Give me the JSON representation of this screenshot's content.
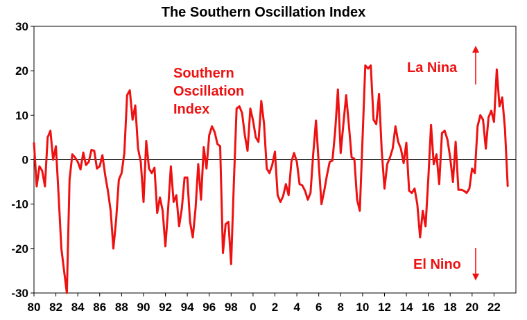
{
  "chart_data": {
    "type": "line",
    "title": "The Southern Oscillation Index",
    "xlabel": "",
    "ylabel": "",
    "xlim": [
      1980,
      2024
    ],
    "ylim": [
      -30,
      30
    ],
    "y_ticks": [
      "30",
      "20",
      "10",
      "0",
      "-10",
      "-20",
      "-30"
    ],
    "x_tick_labels": [
      "80",
      "82",
      "84",
      "86",
      "88",
      "90",
      "92",
      "94",
      "96",
      "98",
      "0",
      "2",
      "4",
      "6",
      "8",
      "10",
      "12",
      "14",
      "16",
      "18",
      "20",
      "22"
    ],
    "grid": false,
    "series_color": "#ee1111",
    "annotations": {
      "series_label": [
        "Southern",
        "Oscillation",
        "Index"
      ],
      "la_nina": "La Nina",
      "el_nino": "El Nino"
    },
    "series": [
      {
        "name": "Southern Oscillation Index",
        "x": [
          1980.0,
          1980.25,
          1980.5,
          1980.75,
          1981.0,
          1981.25,
          1981.5,
          1981.75,
          1982.0,
          1982.25,
          1982.5,
          1982.75,
          1983.0,
          1983.25,
          1983.5,
          1983.75,
          1984.0,
          1984.25,
          1984.5,
          1984.75,
          1985.0,
          1985.25,
          1985.5,
          1985.75,
          1986.0,
          1986.25,
          1986.5,
          1986.75,
          1987.0,
          1987.25,
          1987.5,
          1987.75,
          1988.0,
          1988.25,
          1988.5,
          1988.75,
          1989.0,
          1989.25,
          1989.5,
          1989.75,
          1990.0,
          1990.25,
          1990.5,
          1990.75,
          1991.0,
          1991.25,
          1991.5,
          1991.75,
          1992.0,
          1992.25,
          1992.5,
          1992.75,
          1993.0,
          1993.25,
          1993.5,
          1993.75,
          1994.0,
          1994.25,
          1994.5,
          1994.75,
          1995.0,
          1995.25,
          1995.5,
          1995.75,
          1996.0,
          1996.25,
          1996.5,
          1996.75,
          1997.0,
          1997.25,
          1997.5,
          1997.75,
          1998.0,
          1998.25,
          1998.5,
          1998.75,
          1999.0,
          1999.25,
          1999.5,
          1999.75,
          2000.0,
          2000.25,
          2000.5,
          2000.75,
          2001.0,
          2001.25,
          2001.5,
          2001.75,
          2002.0,
          2002.25,
          2002.5,
          2002.75,
          2003.0,
          2003.25,
          2003.5,
          2003.75,
          2004.0,
          2004.25,
          2004.5,
          2004.75,
          2005.0,
          2005.25,
          2005.5,
          2005.75,
          2006.0,
          2006.25,
          2006.5,
          2006.75,
          2007.0,
          2007.25,
          2007.5,
          2007.75,
          2008.0,
          2008.25,
          2008.5,
          2008.75,
          2009.0,
          2009.25,
          2009.5,
          2009.75,
          2010.0,
          2010.25,
          2010.5,
          2010.75,
          2011.0,
          2011.25,
          2011.5,
          2011.75,
          2012.0,
          2012.25,
          2012.5,
          2012.75,
          2013.0,
          2013.25,
          2013.5,
          2013.75,
          2014.0,
          2014.25,
          2014.5,
          2014.75,
          2015.0,
          2015.25,
          2015.5,
          2015.75,
          2016.0,
          2016.25,
          2016.5,
          2016.75,
          2017.0,
          2017.25,
          2017.5,
          2017.75,
          2018.0,
          2018.25,
          2018.5,
          2018.75,
          2019.0,
          2019.25,
          2019.5,
          2019.75,
          2020.0,
          2020.25,
          2020.5,
          2020.75,
          2021.0,
          2021.25,
          2021.5,
          2021.75,
          2022.0,
          2022.25,
          2022.5,
          2022.75,
          2023.0,
          2023.25
        ],
        "values": [
          3.8,
          -6.0,
          -1.5,
          -2.5,
          -6.0,
          5.0,
          6.5,
          0.0,
          3.0,
          -8.0,
          -20.0,
          -25.0,
          -30.0,
          -4.5,
          1.2,
          0.5,
          -0.5,
          -2.2,
          1.6,
          -1.2,
          -0.5,
          2.2,
          2.0,
          -2.0,
          -1.5,
          1.0,
          -3.5,
          -7.0,
          -11.5,
          -20.0,
          -13.5,
          -4.5,
          -3.0,
          1.5,
          14.5,
          15.6,
          9.0,
          12.2,
          2.5,
          -0.5,
          -9.5,
          4.2,
          -2.0,
          -3.0,
          -1.8,
          -12.0,
          -8.5,
          -11.5,
          -19.5,
          -11.0,
          -1.5,
          -9.5,
          -8.0,
          -15.0,
          -11.0,
          -4.0,
          -4.0,
          -14.0,
          -17.5,
          -11.0,
          -1.0,
          -9.0,
          2.8,
          -2.0,
          5.5,
          7.5,
          6.2,
          3.5,
          3.0,
          -21.0,
          -14.5,
          -14.0,
          -23.5,
          -5.0,
          11.5,
          12.0,
          10.5,
          5.5,
          2.0,
          11.5,
          8.8,
          5.0,
          4.0,
          13.2,
          8.2,
          -2.0,
          -3.0,
          -1.2,
          1.8,
          -8.0,
          -9.5,
          -8.2,
          -5.5,
          -8.0,
          -0.5,
          1.5,
          -0.5,
          -5.5,
          -5.8,
          -7.0,
          -9.0,
          -7.5,
          1.5,
          8.8,
          -1.0,
          -10.0,
          -7.0,
          -3.5,
          -0.5,
          -0.2,
          6.5,
          15.8,
          1.5,
          8.0,
          14.5,
          7.8,
          0.5,
          0.2,
          -9.0,
          -11.5,
          5.0,
          21.2,
          20.5,
          21.2,
          9.0,
          8.0,
          14.8,
          2.0,
          -6.5,
          -1.0,
          0.5,
          2.5,
          7.5,
          4.0,
          2.5,
          -0.8,
          3.8,
          -7.0,
          -7.5,
          -6.5,
          -10.0,
          -17.5,
          -11.5,
          -15.0,
          -4.5,
          7.8,
          -1.0,
          1.2,
          -5.5,
          6.0,
          6.5,
          4.5,
          0.5,
          -5.0,
          4.0,
          -6.8,
          -6.8,
          -7.0,
          -7.5,
          -6.5,
          -2.0,
          -3.0,
          7.5,
          10.0,
          9.0,
          2.5,
          9.5,
          11.0,
          8.5,
          20.3,
          12.0,
          14.0,
          7.0,
          -6.0
        ]
      }
    ]
  }
}
